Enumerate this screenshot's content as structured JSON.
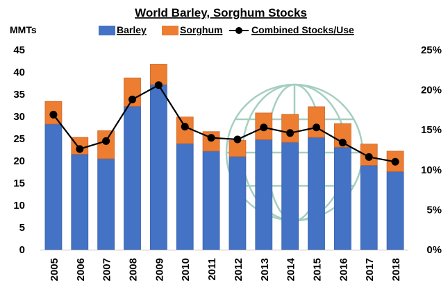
{
  "chart_data": {
    "type": "bar",
    "title": "World Barley, Sorghum Stocks",
    "ylabel": "MMTs",
    "ylim": [
      0,
      45
    ],
    "y_ticks": [
      "0",
      "5",
      "10",
      "15",
      "20",
      "25",
      "30",
      "35",
      "40",
      "45"
    ],
    "y2lim": [
      0,
      25
    ],
    "y2_ticks": [
      "0%",
      "5%",
      "10%",
      "15%",
      "20%",
      "25%"
    ],
    "categories": [
      "2005",
      "2006",
      "2007",
      "2008",
      "2009",
      "2010",
      "2011",
      "2012",
      "2013",
      "2014",
      "2015",
      "2016",
      "2017",
      "2018"
    ],
    "stacked": true,
    "series": [
      {
        "name": "Barley",
        "type": "bar",
        "color": "#4472C4",
        "values": [
          28.3,
          21.5,
          20.5,
          32.3,
          37.2,
          23.9,
          22.2,
          21.0,
          24.8,
          24.2,
          25.3,
          23.1,
          19.0,
          17.6
        ]
      },
      {
        "name": "Sorghum",
        "type": "bar",
        "color": "#ED7D31",
        "values": [
          5.1,
          3.8,
          6.3,
          6.4,
          4.6,
          6.0,
          4.4,
          3.6,
          6.0,
          6.3,
          6.9,
          5.3,
          4.8,
          4.6
        ]
      },
      {
        "name": "Combined Stocks/Use",
        "type": "line",
        "axis": "right",
        "unit": "%",
        "color": "#000000",
        "values": [
          16.9,
          12.6,
          13.6,
          18.8,
          20.6,
          15.4,
          14.0,
          13.8,
          15.3,
          14.6,
          15.3,
          13.4,
          11.6,
          11.0
        ]
      }
    ],
    "legend_position": "top",
    "grid": false
  }
}
